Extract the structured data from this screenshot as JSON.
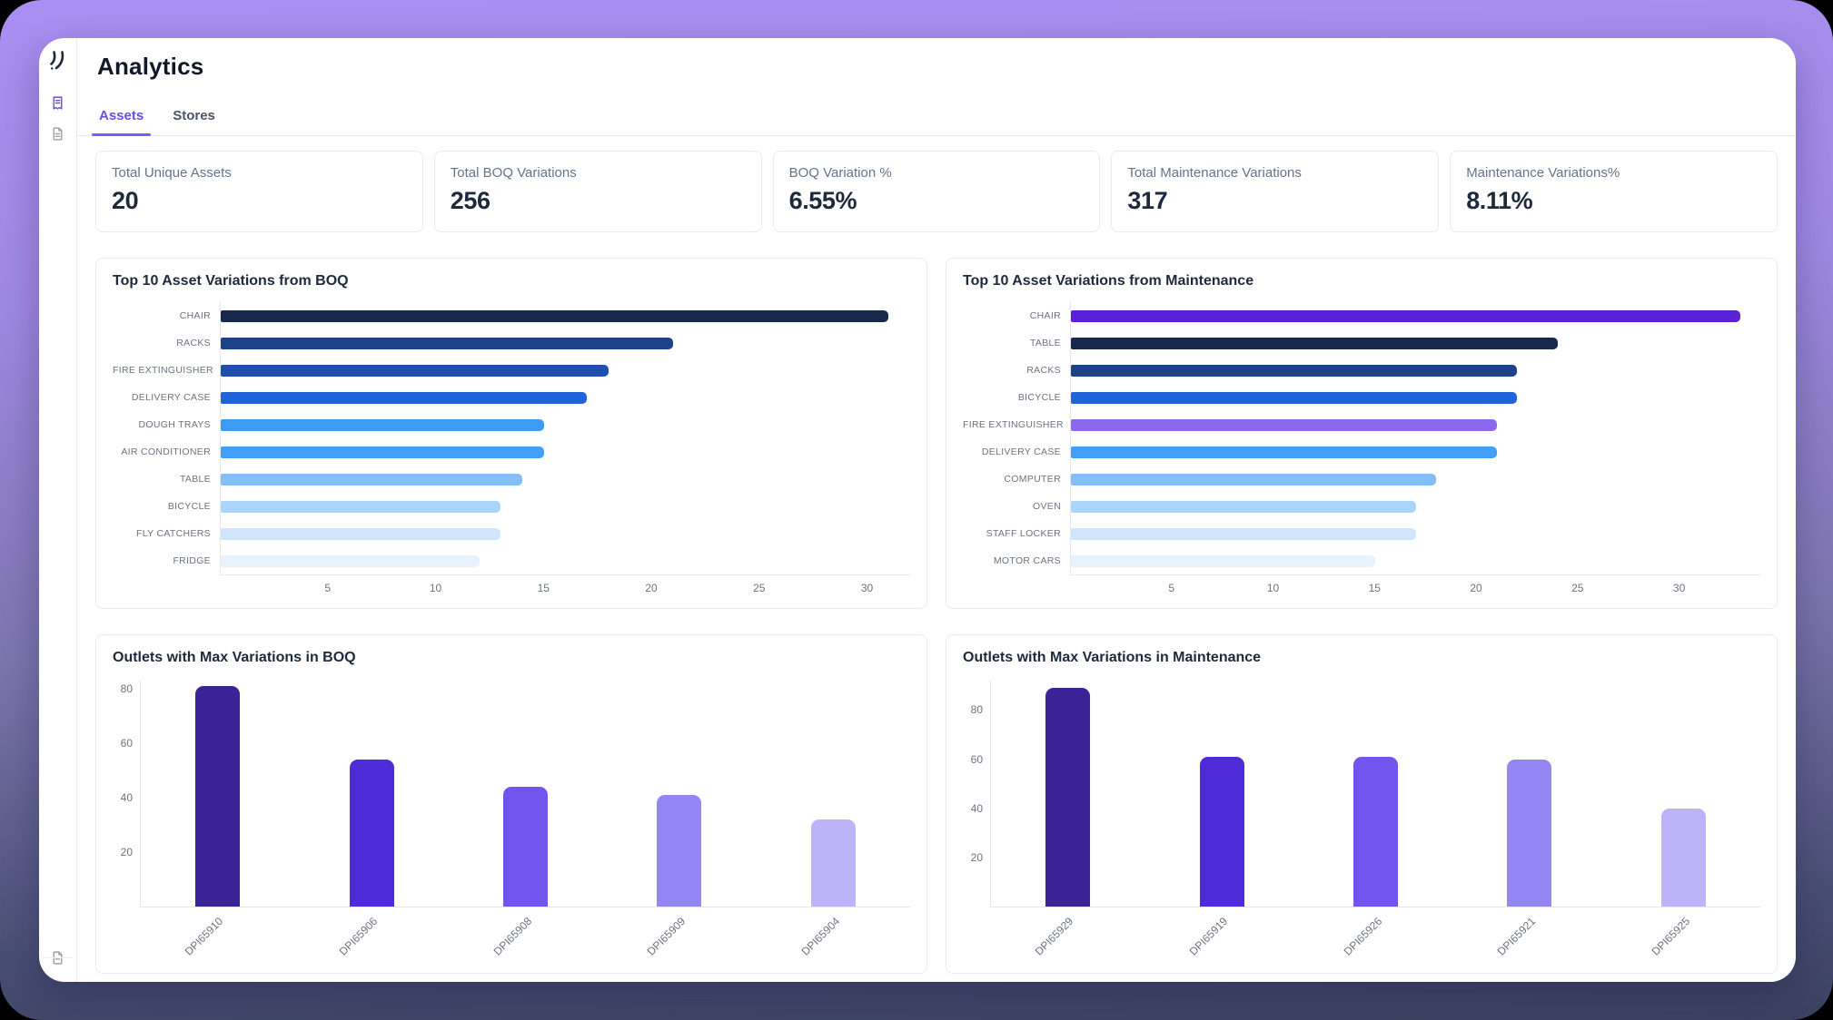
{
  "window": {
    "title": "Analytics"
  },
  "sidebar": {
    "logo_icon": "brand-logo-icon",
    "items": [
      {
        "icon": "receipt-icon",
        "active": true
      },
      {
        "icon": "document-icon",
        "active": false
      }
    ],
    "bottom_icon": "document-icon"
  },
  "tabs": [
    {
      "label": "Assets",
      "active": true
    },
    {
      "label": "Stores",
      "active": false
    }
  ],
  "kpis": [
    {
      "label": "Total Unique Assets",
      "value": "20"
    },
    {
      "label": "Total BOQ Variations",
      "value": "256"
    },
    {
      "label": "BOQ Variation %",
      "value": "6.55%"
    },
    {
      "label": "Total Maintenance Variations",
      "value": "317"
    },
    {
      "label": "Maintenance Variations%",
      "value": "8.11%"
    }
  ],
  "colors": {
    "accent": "#6D4AEF",
    "accent_underline": "#7C5CFA",
    "card_border": "#E8EAF0",
    "text_dark": "#1E293B",
    "text_muted": "#64748B",
    "axis": "#E5E7EB",
    "tick": "#6B7280",
    "background_gradient_top": "#A98FF2",
    "background_gradient_bottom": "#3B4260"
  },
  "chart_data": [
    {
      "id": "boq_top10",
      "type": "bar",
      "orientation": "horizontal",
      "title": "Top 10 Asset Variations from BOQ",
      "categories": [
        "CHAIR",
        "RACKS",
        "FIRE EXTINGUISHER",
        "DELIVERY CASE",
        "DOUGH TRAYS",
        "AIR CONDITIONER",
        "TABLE",
        "BICYCLE",
        "FLY CATCHERS",
        "FRIDGE"
      ],
      "values": [
        31,
        21,
        18,
        17,
        15,
        15,
        14,
        13,
        13,
        12
      ],
      "colors": [
        "#17294E",
        "#1D4289",
        "#1E4FAE",
        "#2163DB",
        "#3D9BF5",
        "#42A0F6",
        "#83BEF8",
        "#ABD4FA",
        "#CFE6FC",
        "#E7F2FD"
      ],
      "xlabel": "",
      "ylabel": "",
      "xlim": [
        0,
        32
      ],
      "xticks": [
        5,
        10,
        15,
        20,
        25,
        30
      ],
      "grid": false,
      "legend": false
    },
    {
      "id": "maint_top10",
      "type": "bar",
      "orientation": "horizontal",
      "title": "Top 10 Asset Variations from Maintenance",
      "categories": [
        "CHAIR",
        "TABLE",
        "RACKS",
        "BICYCLE",
        "FIRE EXTINGUISHER",
        "DELIVERY CASE",
        "COMPUTER",
        "OVEN",
        "STAFF LOCKER",
        "MOTOR CARS"
      ],
      "values": [
        33,
        24,
        22,
        22,
        21,
        21,
        18,
        17,
        17,
        15
      ],
      "colors": [
        "#5A21D6",
        "#17294E",
        "#1D4289",
        "#2163DB",
        "#8B68EE",
        "#42A0F6",
        "#83BEF8",
        "#ABD4FA",
        "#CFE6FC",
        "#E7F2FD"
      ],
      "xlabel": "",
      "ylabel": "",
      "xlim": [
        0,
        34
      ],
      "xticks": [
        5,
        10,
        15,
        20,
        25,
        30
      ],
      "grid": false,
      "legend": false
    },
    {
      "id": "boq_outlets",
      "type": "bar",
      "orientation": "vertical",
      "title": "Outlets with Max Variations in BOQ",
      "categories": [
        "DPI65910",
        "DPI65906",
        "DPI65908",
        "DPI65909",
        "DPI65904"
      ],
      "values": [
        81,
        54,
        44,
        41,
        32
      ],
      "colors": [
        "#3B2397",
        "#4F2BD9",
        "#7155EE",
        "#9486F2",
        "#BCB3F9"
      ],
      "xlabel": "",
      "ylabel": "",
      "ylim": [
        0,
        83
      ],
      "yticks": [
        20,
        40,
        60,
        80
      ],
      "grid": false,
      "legend": false
    },
    {
      "id": "maint_outlets",
      "type": "bar",
      "orientation": "vertical",
      "title": "Outlets with Max Variations in Maintenance",
      "categories": [
        "DPI65929",
        "DPI65919",
        "DPI65926",
        "DPI65921",
        "DPI65925"
      ],
      "values": [
        89,
        61,
        61,
        60,
        40
      ],
      "colors": [
        "#3B2397",
        "#4F2BD9",
        "#7155EE",
        "#9486F2",
        "#BCB3F9"
      ],
      "xlabel": "",
      "ylabel": "",
      "ylim": [
        0,
        92
      ],
      "yticks": [
        20,
        40,
        60,
        80
      ],
      "grid": false,
      "legend": false
    }
  ]
}
